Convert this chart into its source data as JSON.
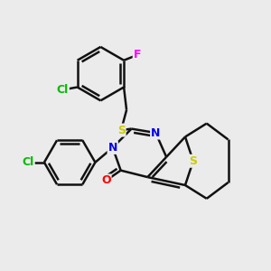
{
  "background_color": "#ebebeb",
  "atom_colors": {
    "N": "#0000ee",
    "O": "#ff0000",
    "S": "#cccc00",
    "Cl": "#00bb00",
    "F": "#ff00ff"
  },
  "bond_color": "#111111",
  "bond_width": 1.8
}
